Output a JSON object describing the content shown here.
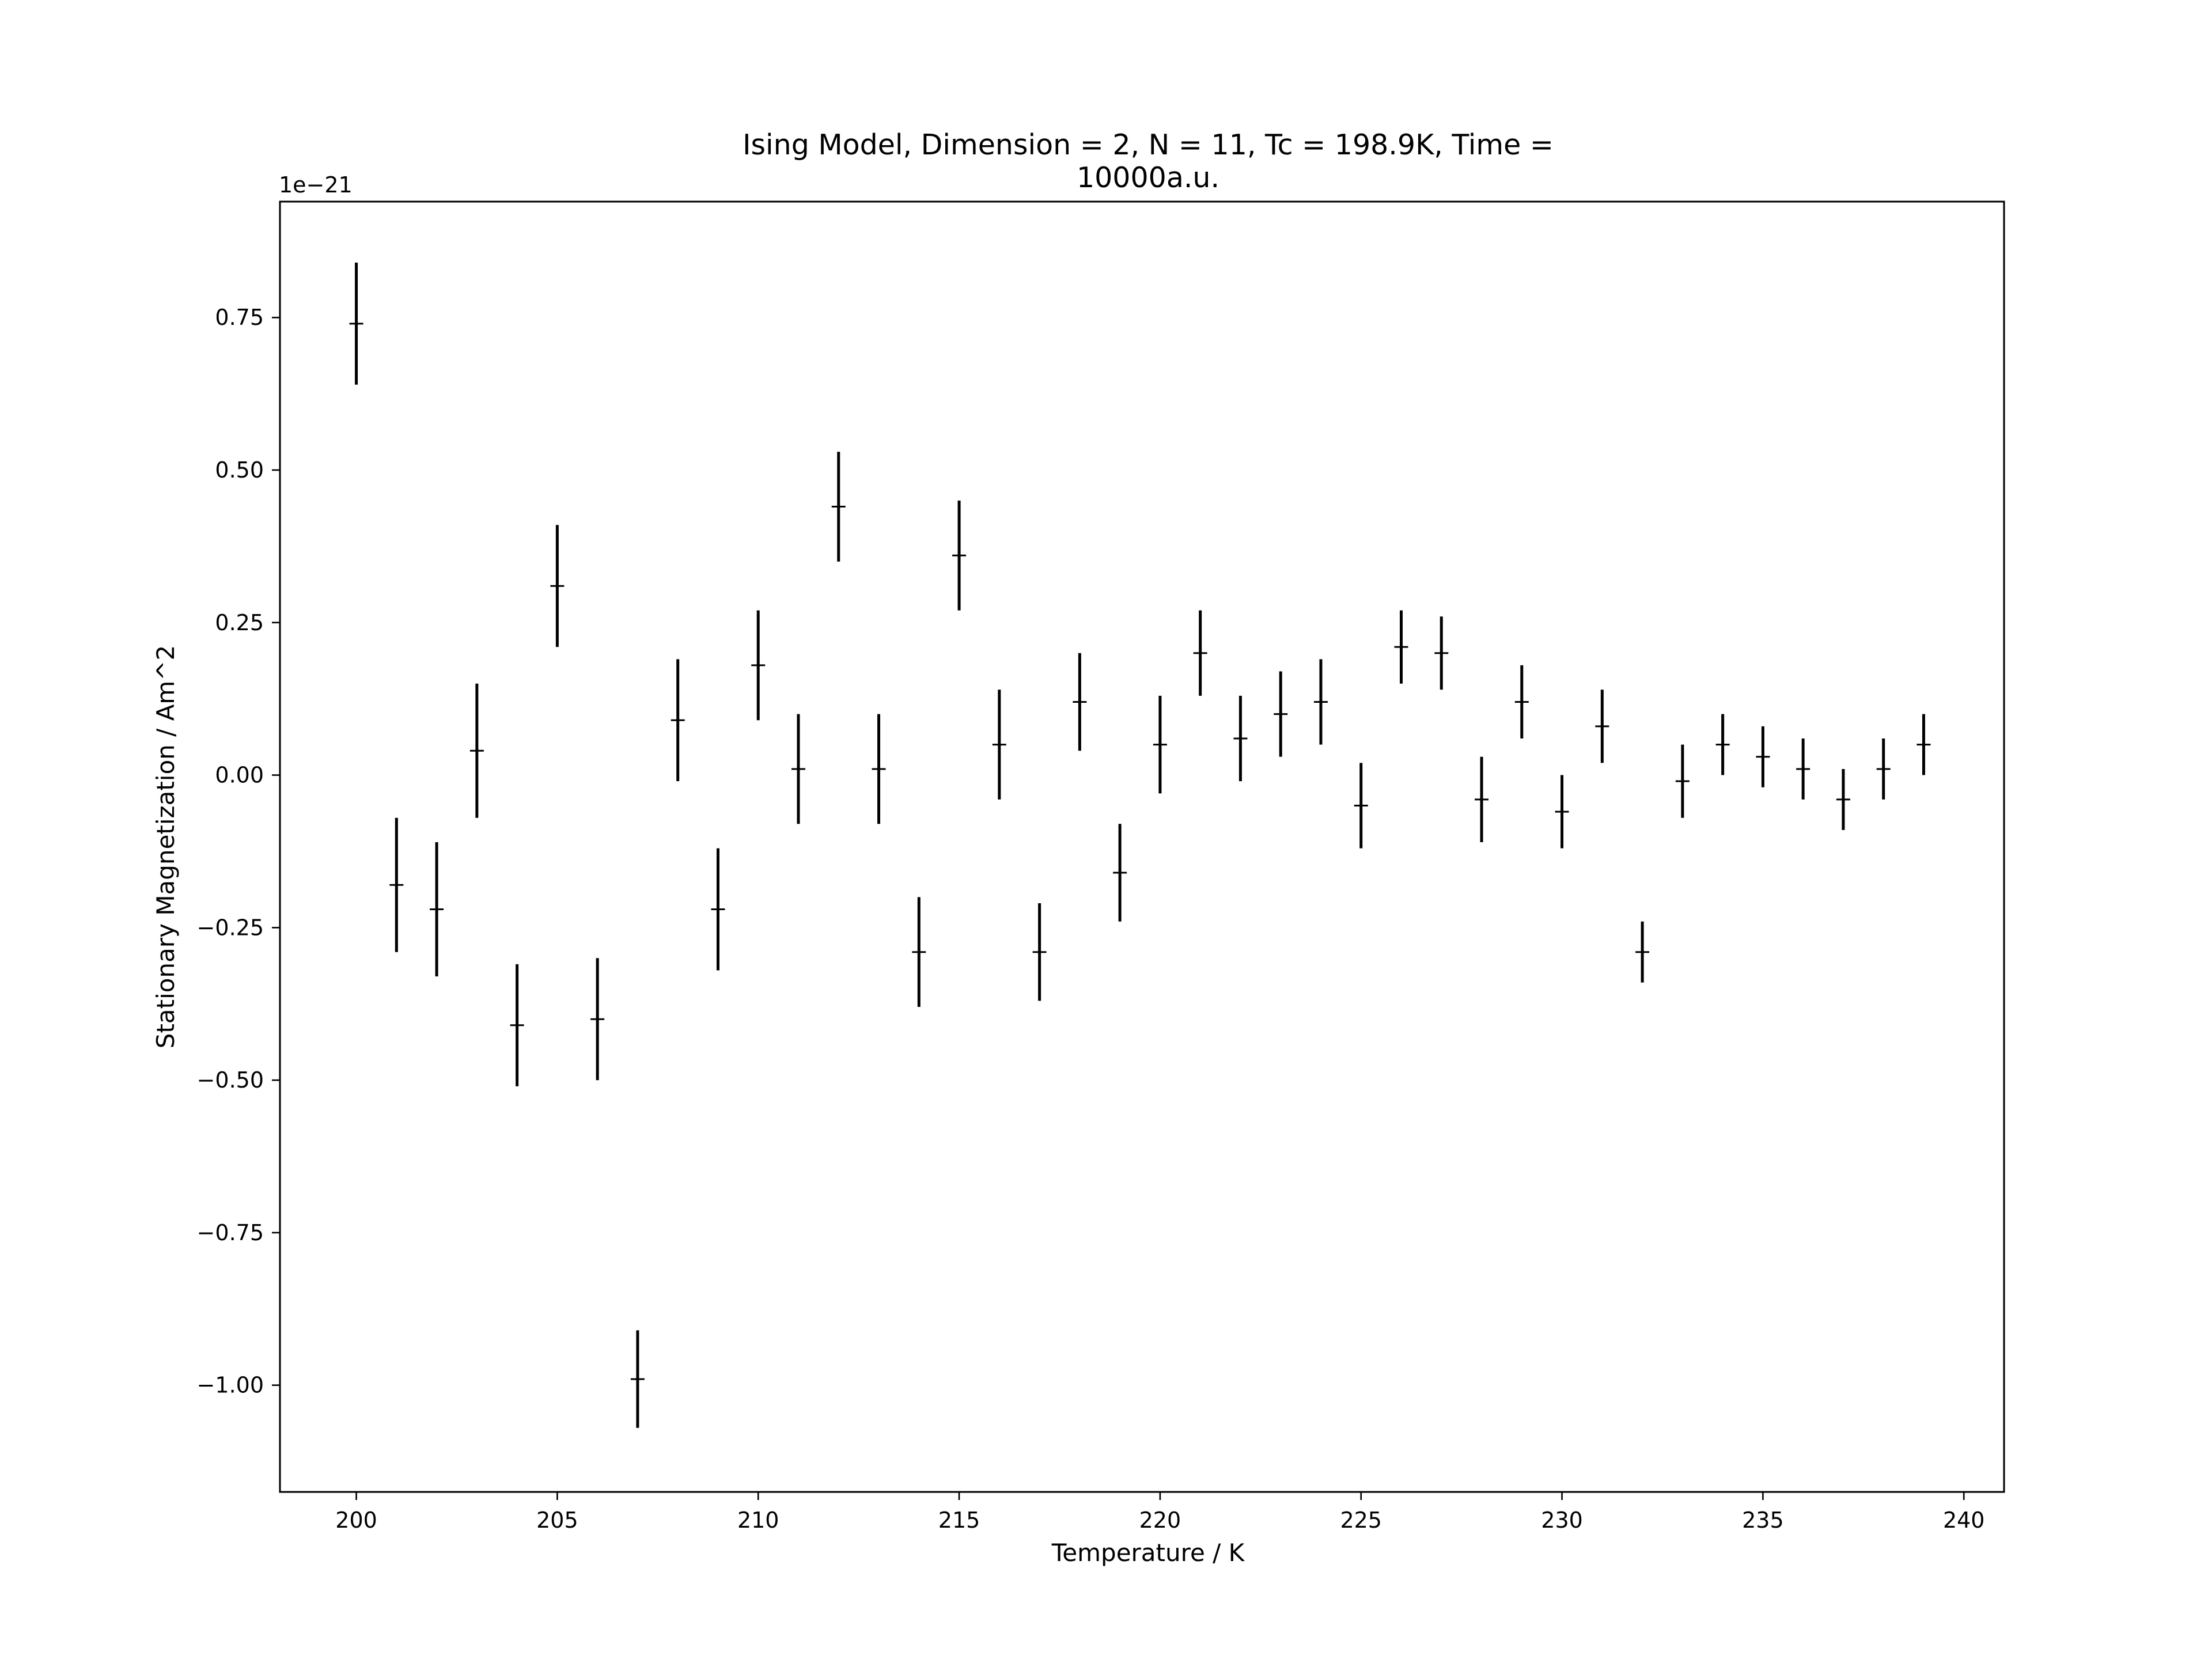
{
  "chart_data": {
    "type": "scatter",
    "title_lines": [
      "Ising Model, Dimension = 2, N = 11, Tc = 198.9K, Time =",
      "10000a.u."
    ],
    "xlabel": "Temperature / K",
    "ylabel": "Stationary Magnetization / Am^2",
    "y_offset_label": "1e−21",
    "xlim": [
      198.1,
      241.0
    ],
    "ylim": [
      -1.175,
      0.94
    ],
    "x_ticks": [
      200,
      205,
      210,
      215,
      220,
      225,
      230,
      235,
      240
    ],
    "x_tick_labels": [
      "200",
      "205",
      "210",
      "215",
      "220",
      "225",
      "230",
      "235",
      "240"
    ],
    "y_ticks": [
      0.75,
      0.5,
      0.25,
      0.0,
      -0.25,
      -0.5,
      -0.75,
      -1.0
    ],
    "y_tick_labels": [
      "0.75",
      "0.50",
      "0.25",
      "0.00",
      "−0.25",
      "−0.50",
      "−0.75",
      "−1.00"
    ],
    "grid": false,
    "series": [
      {
        "color": "#000000",
        "points": [
          {
            "x": 200,
            "y": 0.74,
            "yerr": 0.1
          },
          {
            "x": 201,
            "y": -0.18,
            "yerr": 0.11
          },
          {
            "x": 202,
            "y": -0.22,
            "yerr": 0.11
          },
          {
            "x": 203,
            "y": 0.04,
            "yerr": 0.11
          },
          {
            "x": 204,
            "y": -0.41,
            "yerr": 0.1
          },
          {
            "x": 205,
            "y": 0.31,
            "yerr": 0.1
          },
          {
            "x": 206,
            "y": -0.4,
            "yerr": 0.1
          },
          {
            "x": 207,
            "y": -0.99,
            "yerr": 0.08
          },
          {
            "x": 208,
            "y": 0.09,
            "yerr": 0.1
          },
          {
            "x": 209,
            "y": -0.22,
            "yerr": 0.1
          },
          {
            "x": 210,
            "y": 0.18,
            "yerr": 0.09
          },
          {
            "x": 211,
            "y": 0.01,
            "yerr": 0.09
          },
          {
            "x": 212,
            "y": 0.44,
            "yerr": 0.09
          },
          {
            "x": 213,
            "y": 0.01,
            "yerr": 0.09
          },
          {
            "x": 214,
            "y": -0.29,
            "yerr": 0.09
          },
          {
            "x": 215,
            "y": 0.36,
            "yerr": 0.09
          },
          {
            "x": 216,
            "y": 0.05,
            "yerr": 0.09
          },
          {
            "x": 217,
            "y": -0.29,
            "yerr": 0.08
          },
          {
            "x": 218,
            "y": 0.12,
            "yerr": 0.08
          },
          {
            "x": 219,
            "y": -0.16,
            "yerr": 0.08
          },
          {
            "x": 220,
            "y": 0.05,
            "yerr": 0.08
          },
          {
            "x": 221,
            "y": 0.2,
            "yerr": 0.07
          },
          {
            "x": 222,
            "y": 0.06,
            "yerr": 0.07
          },
          {
            "x": 223,
            "y": 0.1,
            "yerr": 0.07
          },
          {
            "x": 224,
            "y": 0.12,
            "yerr": 0.07
          },
          {
            "x": 225,
            "y": -0.05,
            "yerr": 0.07
          },
          {
            "x": 226,
            "y": 0.21,
            "yerr": 0.06
          },
          {
            "x": 227,
            "y": 0.2,
            "yerr": 0.06
          },
          {
            "x": 228,
            "y": -0.04,
            "yerr": 0.07
          },
          {
            "x": 229,
            "y": 0.12,
            "yerr": 0.06
          },
          {
            "x": 230,
            "y": -0.06,
            "yerr": 0.06
          },
          {
            "x": 231,
            "y": 0.08,
            "yerr": 0.06
          },
          {
            "x": 232,
            "y": -0.29,
            "yerr": 0.05
          },
          {
            "x": 233,
            "y": -0.01,
            "yerr": 0.06
          },
          {
            "x": 234,
            "y": 0.05,
            "yerr": 0.05
          },
          {
            "x": 235,
            "y": 0.03,
            "yerr": 0.05
          },
          {
            "x": 236,
            "y": 0.01,
            "yerr": 0.05
          },
          {
            "x": 237,
            "y": -0.04,
            "yerr": 0.05
          },
          {
            "x": 238,
            "y": 0.01,
            "yerr": 0.05
          },
          {
            "x": 239,
            "y": 0.05,
            "yerr": 0.05
          }
        ]
      }
    ]
  }
}
